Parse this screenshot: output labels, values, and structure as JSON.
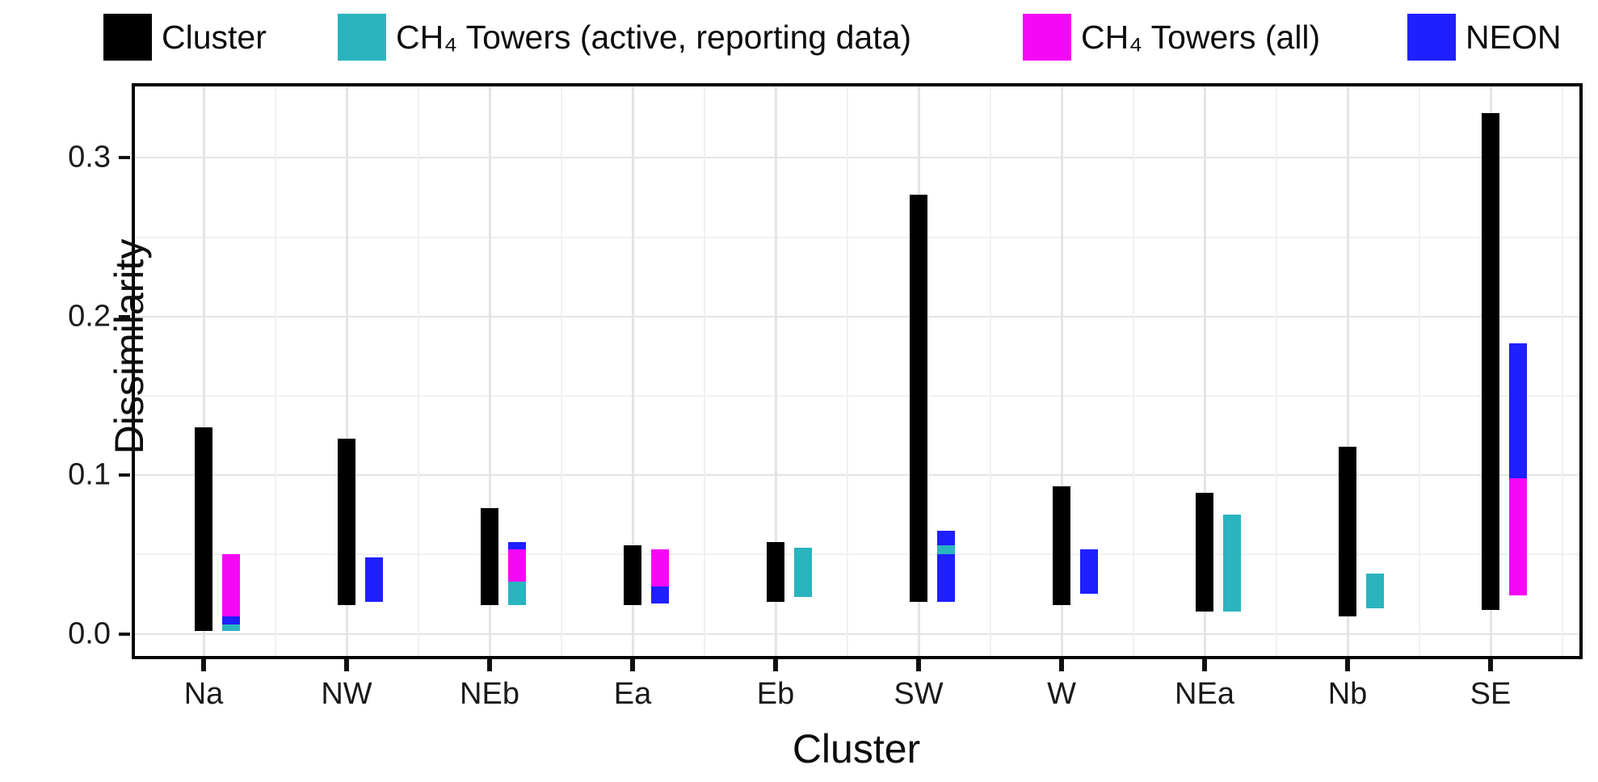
{
  "chart_data": {
    "type": "bar",
    "subtype": "floating-range-bars",
    "title": "",
    "xlabel": "Cluster",
    "ylabel": "Dissimilarity",
    "ylim": [
      -0.014,
      0.345
    ],
    "yticks": [
      0,
      0.1,
      0.2,
      0.3
    ],
    "ytick_labels": [
      "0.0",
      "0.1",
      "0.2",
      "0.3"
    ],
    "minor_yticks": [
      0.05,
      0.15,
      0.25
    ],
    "grid": true,
    "legend_position": "top",
    "categories": [
      "Na",
      "NW",
      "NEb",
      "Ea",
      "Eb",
      "SW",
      "W",
      "NEa",
      "Nb",
      "SE"
    ],
    "series_info": {
      "cluster": {
        "label": "Cluster",
        "color": "#000000"
      },
      "ch4_active": {
        "label": "CH₄ Towers (active, reporting data)",
        "color": "#2ab4bf"
      },
      "ch4_all": {
        "label": "CH₄ Towers (all)",
        "color": "#f607f6"
      },
      "neon": {
        "label": "NEON",
        "color": "#1f1fff"
      }
    },
    "legend_order": [
      "cluster",
      "ch4_active",
      "ch4_all",
      "neon"
    ],
    "groups": [
      {
        "category": "Na",
        "cluster_range": [
          0.002,
          0.13
        ],
        "overlay": [
          {
            "series": "ch4_all",
            "from": 0.011,
            "to": 0.05
          },
          {
            "series": "neon",
            "from": 0.006,
            "to": 0.011
          },
          {
            "series": "ch4_active",
            "from": 0.002,
            "to": 0.006
          }
        ]
      },
      {
        "category": "NW",
        "cluster_range": [
          0.018,
          0.123
        ],
        "overlay": [
          {
            "series": "neon",
            "from": 0.02,
            "to": 0.048
          }
        ]
      },
      {
        "category": "NEb",
        "cluster_range": [
          0.018,
          0.079
        ],
        "overlay": [
          {
            "series": "neon",
            "from": 0.053,
            "to": 0.058
          },
          {
            "series": "ch4_all",
            "from": 0.033,
            "to": 0.053
          },
          {
            "series": "ch4_active",
            "from": 0.018,
            "to": 0.033
          }
        ]
      },
      {
        "category": "Ea",
        "cluster_range": [
          0.018,
          0.056
        ],
        "overlay": [
          {
            "series": "ch4_all",
            "from": 0.03,
            "to": 0.053
          },
          {
            "series": "neon",
            "from": 0.019,
            "to": 0.03
          }
        ]
      },
      {
        "category": "Eb",
        "cluster_range": [
          0.02,
          0.058
        ],
        "overlay": [
          {
            "series": "ch4_active",
            "from": 0.023,
            "to": 0.054
          }
        ]
      },
      {
        "category": "SW",
        "cluster_range": [
          0.02,
          0.277
        ],
        "overlay": [
          {
            "series": "neon",
            "from": 0.02,
            "to": 0.065
          },
          {
            "series": "ch4_active",
            "from": 0.05,
            "to": 0.056
          }
        ]
      },
      {
        "category": "W",
        "cluster_range": [
          0.018,
          0.093
        ],
        "overlay": [
          {
            "series": "neon",
            "from": 0.025,
            "to": 0.053
          }
        ]
      },
      {
        "category": "NEa",
        "cluster_range": [
          0.014,
          0.089
        ],
        "overlay": [
          {
            "series": "ch4_active",
            "from": 0.014,
            "to": 0.075
          }
        ]
      },
      {
        "category": "Nb",
        "cluster_range": [
          0.011,
          0.118
        ],
        "overlay": [
          {
            "series": "ch4_active",
            "from": 0.016,
            "to": 0.038
          }
        ]
      },
      {
        "category": "SE",
        "cluster_range": [
          0.015,
          0.328
        ],
        "overlay": [
          {
            "series": "neon",
            "from": 0.098,
            "to": 0.183
          },
          {
            "series": "ch4_all",
            "from": 0.024,
            "to": 0.098
          }
        ]
      }
    ]
  }
}
